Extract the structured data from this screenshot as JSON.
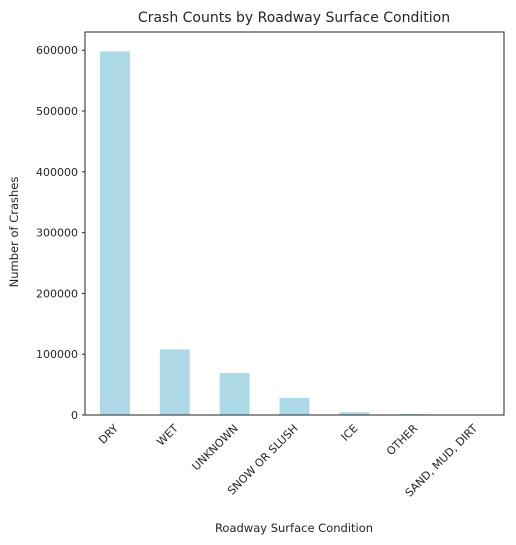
{
  "chart_data": {
    "type": "bar",
    "title": "Crash Counts by Roadway Surface Condition",
    "xlabel": "Roadway Surface Condition",
    "ylabel": "Number of Crashes",
    "categories": [
      "DRY",
      "WET",
      "UNKNOWN",
      "SNOW OR SLUSH",
      "ICE",
      "OTHER",
      "SAND, MUD, DIRT"
    ],
    "values": [
      598000,
      108000,
      69000,
      28000,
      4500,
      1200,
      600
    ],
    "ylim": [
      0,
      630000
    ],
    "yticks": [
      0,
      100000,
      200000,
      300000,
      400000,
      500000,
      600000
    ],
    "bar_color": "#add8e6",
    "grid": false,
    "legend": "none"
  }
}
